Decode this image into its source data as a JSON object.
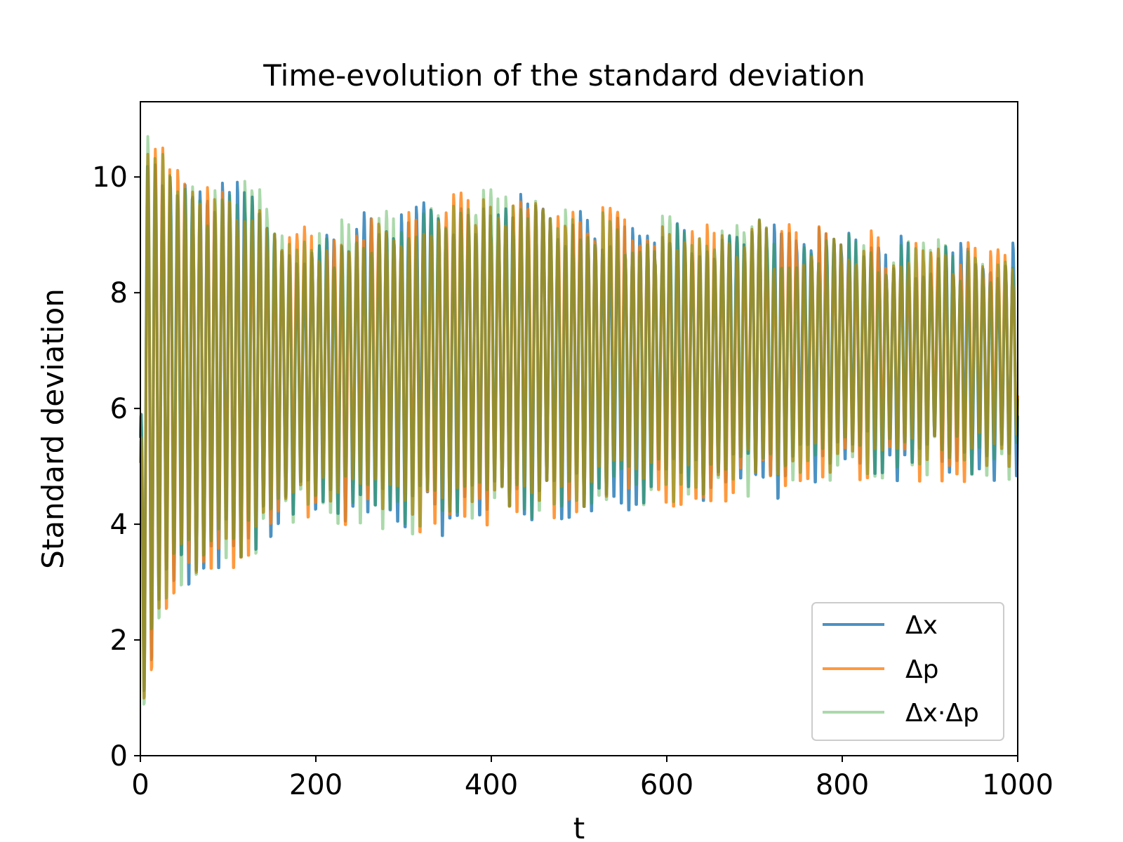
{
  "chart_data": {
    "type": "line",
    "title": "Time-evolution of the standard deviation",
    "xlabel": "t",
    "ylabel": "Standard deviation",
    "xlim": [
      0,
      1000
    ],
    "ylim": [
      0,
      11.3
    ],
    "xticks": [
      "0",
      "200",
      "400",
      "600",
      "800",
      "1000"
    ],
    "yticks": [
      "0",
      "2",
      "4",
      "6",
      "8",
      "10"
    ],
    "xtick_values": [
      0,
      200,
      400,
      600,
      800,
      1000
    ],
    "ytick_values": [
      0,
      2,
      4,
      6,
      8,
      10
    ],
    "grid": false,
    "legend_position": "lower right",
    "oscillation_period": 8.5,
    "series": [
      {
        "name": "Δx",
        "color": "#1f77b4",
        "opacity": 0.8,
        "upper_envelope": [
          [
            0,
            5.8
          ],
          [
            5,
            10.8
          ],
          [
            20,
            10.5
          ],
          [
            40,
            10.1
          ],
          [
            80,
            9.8
          ],
          [
            130,
            9.8
          ],
          [
            160,
            9.1
          ],
          [
            200,
            9.0
          ],
          [
            280,
            9.4
          ],
          [
            340,
            9.5
          ],
          [
            400,
            9.7
          ],
          [
            460,
            9.6
          ],
          [
            500,
            9.4
          ],
          [
            560,
            9.3
          ],
          [
            640,
            9.3
          ],
          [
            700,
            9.2
          ],
          [
            760,
            9.0
          ],
          [
            800,
            9.0
          ],
          [
            900,
            8.8
          ],
          [
            950,
            8.8
          ],
          [
            1000,
            8.8
          ]
        ],
        "lower_envelope": [
          [
            0,
            0.5
          ],
          [
            5,
            0.6
          ],
          [
            20,
            2.2
          ],
          [
            40,
            2.7
          ],
          [
            80,
            3.2
          ],
          [
            130,
            3.3
          ],
          [
            160,
            3.8
          ],
          [
            200,
            4.1
          ],
          [
            280,
            3.9
          ],
          [
            340,
            3.8
          ],
          [
            400,
            3.9
          ],
          [
            460,
            4.0
          ],
          [
            500,
            4.2
          ],
          [
            560,
            4.3
          ],
          [
            640,
            4.4
          ],
          [
            700,
            4.5
          ],
          [
            720,
            4.0
          ],
          [
            760,
            4.7
          ],
          [
            800,
            4.8
          ],
          [
            900,
            4.8
          ],
          [
            950,
            4.8
          ],
          [
            1000,
            4.8
          ]
        ]
      },
      {
        "name": "Δp",
        "color": "#ff7f0e",
        "opacity": 0.8,
        "upper_envelope": [
          [
            0,
            5.8
          ],
          [
            5,
            10.8
          ],
          [
            20,
            10.5
          ],
          [
            40,
            10.1
          ],
          [
            80,
            9.8
          ],
          [
            130,
            9.8
          ],
          [
            160,
            9.1
          ],
          [
            200,
            9.0
          ],
          [
            280,
            9.4
          ],
          [
            340,
            9.5
          ],
          [
            400,
            9.7
          ],
          [
            460,
            9.6
          ],
          [
            500,
            9.4
          ],
          [
            560,
            9.3
          ],
          [
            640,
            9.3
          ],
          [
            700,
            9.2
          ],
          [
            760,
            9.0
          ],
          [
            800,
            9.0
          ],
          [
            900,
            8.8
          ],
          [
            950,
            8.8
          ],
          [
            1000,
            8.8
          ]
        ],
        "lower_envelope": [
          [
            0,
            0.5
          ],
          [
            5,
            0.6
          ],
          [
            20,
            2.2
          ],
          [
            40,
            2.7
          ],
          [
            80,
            3.2
          ],
          [
            130,
            3.3
          ],
          [
            160,
            3.8
          ],
          [
            200,
            4.1
          ],
          [
            280,
            3.9
          ],
          [
            340,
            3.8
          ],
          [
            400,
            3.9
          ],
          [
            460,
            4.0
          ],
          [
            500,
            4.2
          ],
          [
            560,
            4.3
          ],
          [
            640,
            4.4
          ],
          [
            700,
            4.5
          ],
          [
            760,
            4.7
          ],
          [
            800,
            4.8
          ],
          [
            900,
            4.8
          ],
          [
            950,
            4.8
          ],
          [
            1000,
            4.8
          ]
        ]
      },
      {
        "name": "Δx·Δp",
        "color": "#2ca02c",
        "opacity": 0.4,
        "upper_envelope": [
          [
            0,
            5.8
          ],
          [
            5,
            10.8
          ],
          [
            20,
            10.5
          ],
          [
            40,
            10.1
          ],
          [
            80,
            9.8
          ],
          [
            130,
            9.8
          ],
          [
            160,
            9.1
          ],
          [
            200,
            9.0
          ],
          [
            280,
            9.4
          ],
          [
            340,
            9.5
          ],
          [
            400,
            9.7
          ],
          [
            460,
            9.6
          ],
          [
            500,
            9.4
          ],
          [
            560,
            9.3
          ],
          [
            640,
            9.3
          ],
          [
            700,
            9.2
          ],
          [
            760,
            9.0
          ],
          [
            800,
            9.0
          ],
          [
            900,
            8.8
          ],
          [
            950,
            8.8
          ],
          [
            1000,
            8.8
          ]
        ],
        "lower_envelope": [
          [
            0,
            0.5
          ],
          [
            5,
            0.6
          ],
          [
            20,
            2.2
          ],
          [
            40,
            2.7
          ],
          [
            80,
            3.2
          ],
          [
            130,
            3.3
          ],
          [
            160,
            3.8
          ],
          [
            200,
            4.1
          ],
          [
            280,
            3.9
          ],
          [
            340,
            3.8
          ],
          [
            400,
            3.9
          ],
          [
            460,
            4.0
          ],
          [
            500,
            4.2
          ],
          [
            560,
            4.3
          ],
          [
            640,
            4.4
          ],
          [
            700,
            4.5
          ],
          [
            760,
            4.7
          ],
          [
            800,
            4.8
          ],
          [
            900,
            4.8
          ],
          [
            950,
            4.8
          ],
          [
            1000,
            4.8
          ]
        ]
      }
    ]
  }
}
